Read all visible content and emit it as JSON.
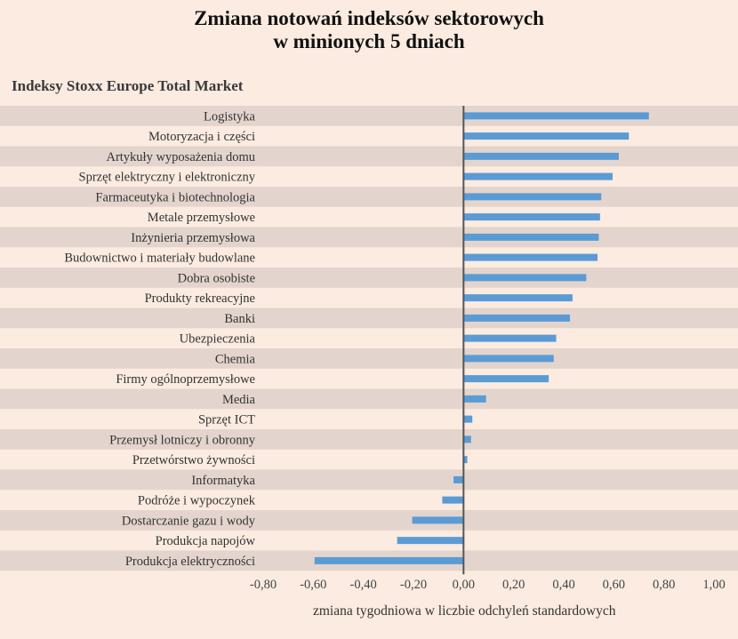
{
  "chart_data": {
    "type": "bar",
    "orientation": "horizontal",
    "title": [
      "Zmiana notowań indeksów sektorowych",
      "w minionych 5 dniach"
    ],
    "subtitle": "Indeksy Stoxx Europe Total Market",
    "xlabel": "zmiana tygodniowa w liczbie odchyleń standardowych",
    "xlim": [
      -0.8,
      1.0
    ],
    "xticks": [
      "-0,80",
      "-0,60",
      "-0,40",
      "-0,20",
      "0,00",
      "0,20",
      "0,40",
      "0,60",
      "0,80",
      "1,00"
    ],
    "categories": [
      "Logistyka",
      "Motoryzacja i części",
      "Artykuły wyposażenia domu",
      "Sprzęt elektryczny i elektroniczny",
      "Farmaceutyka i biotechnologia",
      "Metale przemysłowe",
      "Inżynieria przemysłowa",
      "Budownictwo i materiały budowlane",
      "Dobra osobiste",
      "Produkty rekreacyjne",
      "Banki",
      "Ubezpieczenia",
      "Chemia",
      "Firmy ogólnoprzemysłowe",
      "Media",
      "Sprzęt ICT",
      "Przemysł lotniczy i obronny",
      "Przetwórstwo żywności",
      "Informatyka",
      "Podróże i wypoczynek",
      "Dostarczanie gazu i wody",
      "Produkcja napojów",
      "Produkcja elektryczności"
    ],
    "values": [
      0.74,
      0.66,
      0.62,
      0.595,
      0.55,
      0.545,
      0.54,
      0.535,
      0.49,
      0.435,
      0.425,
      0.37,
      0.36,
      0.34,
      0.09,
      0.035,
      0.03,
      0.015,
      -0.04,
      -0.085,
      -0.205,
      -0.265,
      -0.595
    ],
    "grid": false,
    "colors": {
      "bar": "#5b9bd5",
      "band": "#e3d5cd",
      "background": "#fbebe0",
      "axis": "#555555"
    }
  }
}
